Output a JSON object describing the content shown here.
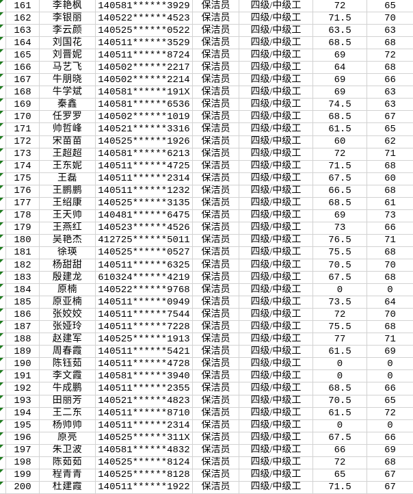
{
  "colors": {
    "gridline": "#d2d2d2",
    "error_triangle": "#1e7b1e",
    "text": "#000000",
    "background": "#ffffff"
  },
  "icons": {
    "error_indicator": "green-corner-triangle"
  },
  "sheet": {
    "rows": [
      {
        "seq": "161",
        "name": "李艳枫",
        "id": "140581******3929",
        "job": "保洁员",
        "level": "四级/中级工",
        "score1": "72",
        "score2": "65"
      },
      {
        "seq": "162",
        "name": "李银丽",
        "id": "140522******4523",
        "job": "保洁员",
        "level": "四级/中级工",
        "score1": "71.5",
        "score2": "70"
      },
      {
        "seq": "163",
        "name": "李云颜",
        "id": "140525******0522",
        "job": "保洁员",
        "level": "四级/中级工",
        "score1": "63.5",
        "score2": "63"
      },
      {
        "seq": "164",
        "name": "刘国花",
        "id": "140511******3529",
        "job": "保洁员",
        "level": "四级/中级工",
        "score1": "68.5",
        "score2": "68"
      },
      {
        "seq": "165",
        "name": "刘晋妮",
        "id": "140511******8724",
        "job": "保洁员",
        "level": "四级/中级工",
        "score1": "69",
        "score2": "72"
      },
      {
        "seq": "166",
        "name": "马艺飞",
        "id": "140502******2217",
        "job": "保洁员",
        "level": "四级/中级工",
        "score1": "64",
        "score2": "68"
      },
      {
        "seq": "167",
        "name": "牛朋晓",
        "id": "140502******2214",
        "job": "保洁员",
        "level": "四级/中级工",
        "score1": "69",
        "score2": "66"
      },
      {
        "seq": "168",
        "name": "牛学斌",
        "id": "140581******191X",
        "job": "保洁员",
        "level": "四级/中级工",
        "score1": "69",
        "score2": "63"
      },
      {
        "seq": "169",
        "name": "秦鑫",
        "id": "140581******6536",
        "job": "保洁员",
        "level": "四级/中级工",
        "score1": "74.5",
        "score2": "63"
      },
      {
        "seq": "170",
        "name": "任罗罗",
        "id": "140502******1019",
        "job": "保洁员",
        "level": "四级/中级工",
        "score1": "68.5",
        "score2": "67"
      },
      {
        "seq": "171",
        "name": "帅哲峰",
        "id": "140521******3316",
        "job": "保洁员",
        "level": "四级/中级工",
        "score1": "61.5",
        "score2": "65"
      },
      {
        "seq": "172",
        "name": "宋苗苗",
        "id": "140525******1926",
        "job": "保洁员",
        "level": "四级/中级工",
        "score1": "60",
        "score2": "62"
      },
      {
        "seq": "173",
        "name": "王超超",
        "id": "140581******6213",
        "job": "保洁员",
        "level": "四级/中级工",
        "score1": "72",
        "score2": "71"
      },
      {
        "seq": "174",
        "name": "王东妮",
        "id": "140511******4725",
        "job": "保洁员",
        "level": "四级/中级工",
        "score1": "71.5",
        "score2": "68"
      },
      {
        "seq": "175",
        "name": "王磊",
        "id": "140511******2314",
        "job": "保洁员",
        "level": "四级/中级工",
        "score1": "67.5",
        "score2": "60"
      },
      {
        "seq": "176",
        "name": "王鹏鹏",
        "id": "140511******1232",
        "job": "保洁员",
        "level": "四级/中级工",
        "score1": "66.5",
        "score2": "68"
      },
      {
        "seq": "177",
        "name": "王绍康",
        "id": "140525******3135",
        "job": "保洁员",
        "level": "四级/中级工",
        "score1": "68.5",
        "score2": "61"
      },
      {
        "seq": "178",
        "name": "王天帅",
        "id": "140481******6475",
        "job": "保洁员",
        "level": "四级/中级工",
        "score1": "69",
        "score2": "73"
      },
      {
        "seq": "179",
        "name": "王燕红",
        "id": "140523******4526",
        "job": "保洁员",
        "level": "四级/中级工",
        "score1": "73",
        "score2": "66"
      },
      {
        "seq": "180",
        "name": "吴艳杰",
        "id": "412725******5011",
        "job": "保洁员",
        "level": "四级/中级工",
        "score1": "76.5",
        "score2": "71"
      },
      {
        "seq": "181",
        "name": "徐瑛",
        "id": "140525******0527",
        "job": "保洁员",
        "level": "四级/中级工",
        "score1": "75.5",
        "score2": "68"
      },
      {
        "seq": "182",
        "name": "杨甜甜",
        "id": "140511******6325",
        "job": "保洁员",
        "level": "四级/中级工",
        "score1": "70.5",
        "score2": "70"
      },
      {
        "seq": "183",
        "name": "殷建龙",
        "id": "610324******4219",
        "job": "保洁员",
        "level": "四级/中级工",
        "score1": "67.5",
        "score2": "68"
      },
      {
        "seq": "184",
        "name": "原楠",
        "id": "140522******9768",
        "job": "保洁员",
        "level": "四级/中级工",
        "score1": "0",
        "score2": "0"
      },
      {
        "seq": "185",
        "name": "原亚楠",
        "id": "140511******0949",
        "job": "保洁员",
        "level": "四级/中级工",
        "score1": "73.5",
        "score2": "64"
      },
      {
        "seq": "186",
        "name": "张姣姣",
        "id": "140511******7544",
        "job": "保洁员",
        "level": "四级/中级工",
        "score1": "72",
        "score2": "70"
      },
      {
        "seq": "187",
        "name": "张娅玲",
        "id": "140511******7228",
        "job": "保洁员",
        "level": "四级/中级工",
        "score1": "75.5",
        "score2": "68"
      },
      {
        "seq": "188",
        "name": "赵建军",
        "id": "140525******1913",
        "job": "保洁员",
        "level": "四级/中级工",
        "score1": "77",
        "score2": "71"
      },
      {
        "seq": "189",
        "name": "周春霞",
        "id": "140511******5421",
        "job": "保洁员",
        "level": "四级/中级工",
        "score1": "61.5",
        "score2": "69"
      },
      {
        "seq": "190",
        "name": "陈钰茹",
        "id": "140511******4728",
        "job": "保洁员",
        "level": "四级/中级工",
        "score1": "0",
        "score2": "0"
      },
      {
        "seq": "191",
        "name": "李文霞",
        "id": "140581******3940",
        "job": "保洁员",
        "level": "四级/中级工",
        "score1": "0",
        "score2": "0"
      },
      {
        "seq": "192",
        "name": "牛成鹏",
        "id": "140511******2355",
        "job": "保洁员",
        "level": "四级/中级工",
        "score1": "68.5",
        "score2": "66"
      },
      {
        "seq": "193",
        "name": "田丽芳",
        "id": "140521******4823",
        "job": "保洁员",
        "level": "四级/中级工",
        "score1": "70.5",
        "score2": "65"
      },
      {
        "seq": "194",
        "name": "王二东",
        "id": "140511******8710",
        "job": "保洁员",
        "level": "四级/中级工",
        "score1": "61.5",
        "score2": "72"
      },
      {
        "seq": "195",
        "name": "杨帅帅",
        "id": "140511******2314",
        "job": "保洁员",
        "level": "四级/中级工",
        "score1": "0",
        "score2": "0"
      },
      {
        "seq": "196",
        "name": "原亮",
        "id": "140525******311X",
        "job": "保洁员",
        "level": "四级/中级工",
        "score1": "67.5",
        "score2": "66"
      },
      {
        "seq": "197",
        "name": "朱卫波",
        "id": "140581******4832",
        "job": "保洁员",
        "level": "四级/中级工",
        "score1": "66",
        "score2": "69"
      },
      {
        "seq": "198",
        "name": "陈茹茹",
        "id": "140525******8124",
        "job": "保洁员",
        "level": "四级/中级工",
        "score1": "72",
        "score2": "68"
      },
      {
        "seq": "199",
        "name": "程青青",
        "id": "140525******8128",
        "job": "保洁员",
        "level": "四级/中级工",
        "score1": "65",
        "score2": "67"
      },
      {
        "seq": "200",
        "name": "杜建霞",
        "id": "140511******1922",
        "job": "保洁员",
        "level": "四级/中级工",
        "score1": "71.5",
        "score2": "67"
      }
    ]
  }
}
